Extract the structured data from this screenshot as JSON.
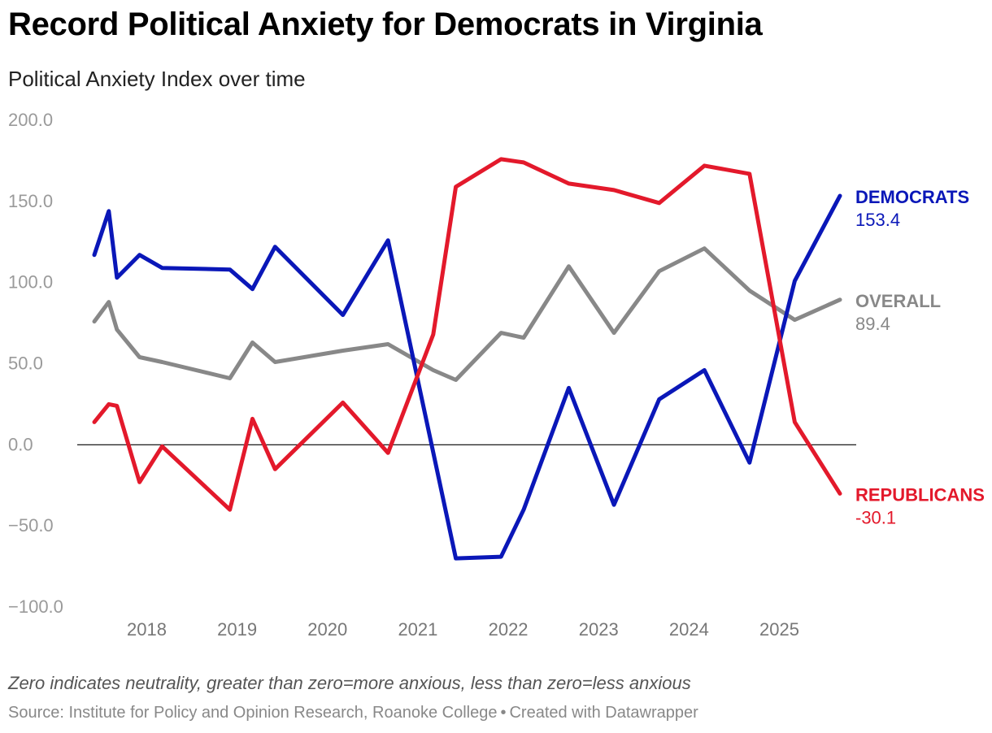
{
  "header": {
    "title": "Record Political Anxiety for Democrats in Virginia",
    "subtitle": "Political Anxiety Index over time"
  },
  "footer": {
    "note": "Zero indicates neutrality, greater than zero=more anxious, less than zero=less anxious",
    "source": "Source: Institute for Policy and Opinion Research, Roanoke College",
    "separator": "•",
    "credit": "Created with Datawrapper"
  },
  "chart_data": {
    "type": "line",
    "title": "Record Political Anxiety for Democrats in Virginia",
    "subtitle": "Political Anxiety Index over time",
    "xlabel": "",
    "ylabel": "",
    "xlim": [
      2017.6,
      2025.6
    ],
    "ylim": [
      -100,
      200
    ],
    "yticks": [
      -100,
      -50,
      0,
      50,
      100,
      150,
      200
    ],
    "ytick_labels": [
      "−100.0",
      "−50.0",
      "0.0",
      "50.0",
      "100.0",
      "150.0",
      "200.0"
    ],
    "xticks": [
      2018,
      2019,
      2020,
      2021,
      2022,
      2023,
      2024,
      2025
    ],
    "xtick_labels": [
      "2018",
      "2019",
      "2020",
      "2021",
      "2022",
      "2023",
      "2024",
      "2025"
    ],
    "grid": false,
    "zero_line": true,
    "series": [
      {
        "name": "DEMOCRATS",
        "color": "#0a17b8",
        "end_label": "153.4",
        "x": [
          2017.42,
          2017.58,
          2017.67,
          2017.92,
          2018.17,
          2018.92,
          2019.17,
          2019.42,
          2020.17,
          2020.67,
          2021.42,
          2021.92,
          2022.17,
          2022.67,
          2023.17,
          2023.67,
          2024.17,
          2024.67,
          2025.17,
          2025.67
        ],
        "values": [
          117,
          144,
          103,
          117,
          109,
          108,
          96,
          122,
          80,
          126,
          -70,
          -69,
          -40,
          35,
          -37,
          28,
          46,
          -11,
          101,
          153.4
        ]
      },
      {
        "name": "OVERALL",
        "color": "#888888",
        "end_label": "89.4",
        "x": [
          2017.42,
          2017.58,
          2017.67,
          2017.92,
          2018.17,
          2018.92,
          2019.17,
          2019.42,
          2020.17,
          2020.67,
          2021.17,
          2021.42,
          2021.92,
          2022.17,
          2022.67,
          2023.17,
          2023.67,
          2024.17,
          2024.67,
          2025.17,
          2025.67
        ],
        "values": [
          76,
          88,
          71,
          54,
          51,
          41,
          63,
          51,
          58,
          62,
          46,
          40,
          69,
          66,
          110,
          69,
          107,
          121,
          95,
          77,
          89.4
        ]
      },
      {
        "name": "REPUBLICANS",
        "color": "#e3192b",
        "end_label": "-30.1",
        "x": [
          2017.42,
          2017.58,
          2017.67,
          2017.92,
          2018.17,
          2018.92,
          2019.17,
          2019.42,
          2020.17,
          2020.67,
          2021.17,
          2021.42,
          2021.92,
          2022.17,
          2022.67,
          2023.17,
          2023.67,
          2024.17,
          2024.67,
          2025.17,
          2025.67
        ],
        "values": [
          14,
          25,
          24,
          -23,
          -1,
          -40,
          16,
          -15,
          26,
          -5,
          68,
          159,
          176,
          174,
          161,
          157,
          149,
          172,
          167,
          14,
          -30.1
        ]
      }
    ]
  }
}
